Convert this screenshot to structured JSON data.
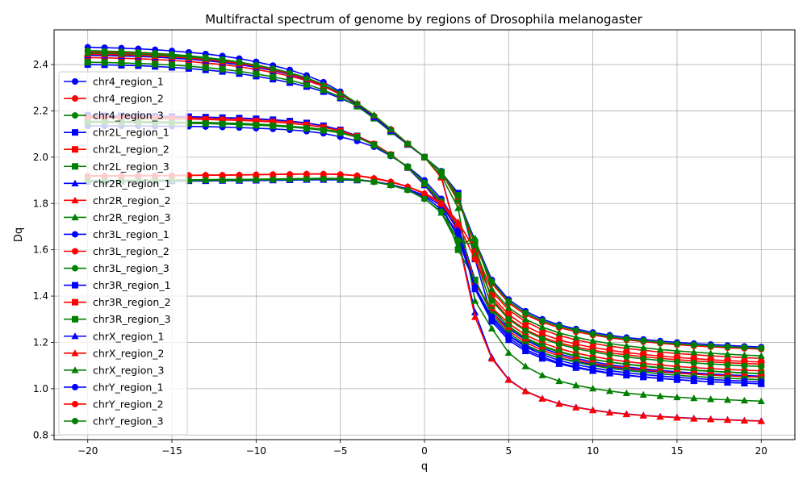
{
  "chart_data": {
    "type": "line",
    "title": "Multifractal spectrum of genome by regions of Drosophila melanogaster",
    "xlabel": "q",
    "ylabel": "Dq",
    "xlim": [
      -22,
      22
    ],
    "ylim": [
      0.78,
      2.55
    ],
    "xticks": [
      -20,
      -15,
      -10,
      -5,
      0,
      5,
      10,
      15,
      20
    ],
    "yticks": [
      0.8,
      1.0,
      1.2,
      1.4,
      1.6,
      1.8,
      2.0,
      2.2,
      2.4
    ],
    "xtick_labels": [
      "−20",
      "−15",
      "−10",
      "−5",
      "0",
      "5",
      "10",
      "15",
      "20"
    ],
    "ytick_labels": [
      "0.8",
      "1.0",
      "1.2",
      "1.4",
      "1.6",
      "1.8",
      "2.0",
      "2.2",
      "2.4"
    ],
    "grid": true,
    "legend_position": "left",
    "x": [
      -20,
      -19,
      -18,
      -17,
      -16,
      -15,
      -14,
      -13,
      -12,
      -11,
      -10,
      -9,
      -8,
      -7,
      -6,
      -5,
      -4,
      -3,
      -2,
      -1,
      0,
      1,
      2,
      3,
      4,
      5,
      6,
      7,
      8,
      9,
      10,
      11,
      12,
      13,
      14,
      15,
      16,
      17,
      18,
      19,
      20
    ],
    "series": [
      {
        "name": "chr4_region_1",
        "color": "#0000ff",
        "marker": "circle",
        "values": [
          2.475,
          2.473,
          2.471,
          2.468,
          2.464,
          2.459,
          2.453,
          2.446,
          2.437,
          2.426,
          2.412,
          2.396,
          2.377,
          2.353,
          2.324,
          2.283,
          2.228,
          2.17,
          2.112,
          2.055,
          2.0,
          1.94,
          1.82,
          1.64,
          1.47,
          1.385,
          1.335,
          1.3,
          1.276,
          1.258,
          1.243,
          1.231,
          1.221,
          1.213,
          1.206,
          1.2,
          1.195,
          1.191,
          1.187,
          1.183,
          1.18
        ]
      },
      {
        "name": "chr4_region_2",
        "color": "#ff0000",
        "marker": "circle",
        "values": [
          2.455,
          2.453,
          2.451,
          2.448,
          2.444,
          2.439,
          2.433,
          2.426,
          2.417,
          2.406,
          2.392,
          2.377,
          2.358,
          2.336,
          2.309,
          2.273,
          2.228,
          2.178,
          2.12,
          2.058,
          2.0,
          1.935,
          1.81,
          1.625,
          1.455,
          1.37,
          1.32,
          1.287,
          1.264,
          1.246,
          1.232,
          1.22,
          1.211,
          1.203,
          1.196,
          1.19,
          1.185,
          1.181,
          1.177,
          1.174,
          1.171
        ]
      },
      {
        "name": "chr4_region_3",
        "color": "#008000",
        "marker": "circle",
        "values": [
          2.46,
          2.458,
          2.456,
          2.453,
          2.449,
          2.444,
          2.438,
          2.431,
          2.422,
          2.411,
          2.397,
          2.381,
          2.362,
          2.338,
          2.31,
          2.272,
          2.224,
          2.172,
          2.115,
          2.056,
          2.0,
          1.937,
          1.815,
          1.632,
          1.462,
          1.377,
          1.327,
          1.293,
          1.27,
          1.252,
          1.237,
          1.225,
          1.215,
          1.207,
          1.2,
          1.194,
          1.189,
          1.185,
          1.181,
          1.178,
          1.175
        ]
      },
      {
        "name": "chr2L_region_1",
        "color": "#0000ff",
        "marker": "square",
        "values": [
          2.4,
          2.399,
          2.397,
          2.395,
          2.392,
          2.388,
          2.383,
          2.377,
          2.37,
          2.361,
          2.35,
          2.337,
          2.322,
          2.305,
          2.283,
          2.255,
          2.222,
          2.17,
          2.11,
          2.055,
          2.0,
          1.935,
          1.845,
          1.56,
          1.31,
          1.23,
          1.185,
          1.155,
          1.133,
          1.117,
          1.104,
          1.094,
          1.085,
          1.078,
          1.072,
          1.067,
          1.063,
          1.059,
          1.056,
          1.053,
          1.05
        ]
      },
      {
        "name": "chr2L_region_2",
        "color": "#ff0000",
        "marker": "square",
        "values": [
          2.43,
          2.429,
          2.427,
          2.425,
          2.422,
          2.418,
          2.413,
          2.407,
          2.4,
          2.391,
          2.379,
          2.366,
          2.35,
          2.331,
          2.306,
          2.271,
          2.228,
          2.172,
          2.115,
          2.056,
          2.0,
          1.935,
          1.83,
          1.59,
          1.39,
          1.305,
          1.255,
          1.222,
          1.198,
          1.18,
          1.166,
          1.155,
          1.146,
          1.138,
          1.131,
          1.125,
          1.12,
          1.116,
          1.112,
          1.109,
          1.106
        ]
      },
      {
        "name": "chr2L_region_3",
        "color": "#008000",
        "marker": "square",
        "values": [
          2.41,
          2.409,
          2.407,
          2.405,
          2.402,
          2.398,
          2.393,
          2.387,
          2.38,
          2.371,
          2.36,
          2.347,
          2.332,
          2.314,
          2.291,
          2.26,
          2.22,
          2.168,
          2.11,
          2.055,
          2.0,
          1.936,
          1.835,
          1.575,
          1.35,
          1.265,
          1.215,
          1.182,
          1.158,
          1.14,
          1.126,
          1.115,
          1.106,
          1.098,
          1.091,
          1.085,
          1.08,
          1.076,
          1.072,
          1.068,
          1.065
        ]
      },
      {
        "name": "chr2R_region_1",
        "color": "#0000ff",
        "marker": "triangle",
        "values": [
          2.44,
          2.439,
          2.437,
          2.435,
          2.432,
          2.428,
          2.423,
          2.417,
          2.409,
          2.4,
          2.388,
          2.374,
          2.357,
          2.336,
          2.31,
          2.274,
          2.228,
          2.172,
          2.114,
          2.056,
          2.0,
          1.915,
          1.65,
          1.33,
          1.135,
          1.04,
          0.99,
          0.958,
          0.936,
          0.92,
          0.908,
          0.898,
          0.891,
          0.885,
          0.88,
          0.876,
          0.872,
          0.869,
          0.866,
          0.863,
          0.861
        ]
      },
      {
        "name": "chr2R_region_2",
        "color": "#ff0000",
        "marker": "triangle",
        "values": [
          2.445,
          2.444,
          2.442,
          2.44,
          2.437,
          2.433,
          2.428,
          2.422,
          2.414,
          2.405,
          2.393,
          2.378,
          2.36,
          2.338,
          2.31,
          2.275,
          2.232,
          2.18,
          2.12,
          2.058,
          2.0,
          1.912,
          1.645,
          1.31,
          1.13,
          1.038,
          0.989,
          0.957,
          0.935,
          0.919,
          0.907,
          0.897,
          0.89,
          0.884,
          0.879,
          0.875,
          0.871,
          0.868,
          0.865,
          0.862,
          0.86
        ]
      },
      {
        "name": "chr2R_region_3",
        "color": "#008000",
        "marker": "triangle",
        "values": [
          2.45,
          2.449,
          2.447,
          2.445,
          2.442,
          2.438,
          2.433,
          2.427,
          2.419,
          2.41,
          2.398,
          2.383,
          2.365,
          2.343,
          2.314,
          2.278,
          2.234,
          2.182,
          2.122,
          2.06,
          2.0,
          1.92,
          1.78,
          1.38,
          1.26,
          1.155,
          1.097,
          1.058,
          1.033,
          1.015,
          1.001,
          0.99,
          0.981,
          0.974,
          0.968,
          0.963,
          0.959,
          0.955,
          0.952,
          0.949,
          0.946
        ]
      },
      {
        "name": "chr3L_region_1",
        "color": "#0000ff",
        "marker": "circle",
        "values": [
          2.135,
          2.135,
          2.135,
          2.135,
          2.134,
          2.134,
          2.133,
          2.132,
          2.13,
          2.128,
          2.125,
          2.122,
          2.118,
          2.112,
          2.103,
          2.088,
          2.07,
          2.045,
          2.005,
          1.96,
          1.9,
          1.82,
          1.705,
          1.47,
          1.33,
          1.26,
          1.21,
          1.175,
          1.15,
          1.131,
          1.116,
          1.104,
          1.094,
          1.086,
          1.079,
          1.073,
          1.068,
          1.064,
          1.06,
          1.057,
          1.054
        ]
      },
      {
        "name": "chr3L_region_2",
        "color": "#ff0000",
        "marker": "circle",
        "values": [
          2.175,
          2.174,
          2.174,
          2.173,
          2.172,
          2.171,
          2.17,
          2.169,
          2.167,
          2.165,
          2.162,
          2.158,
          2.153,
          2.146,
          2.135,
          2.118,
          2.092,
          2.058,
          2.012,
          1.955,
          1.88,
          1.8,
          1.7,
          1.45,
          1.35,
          1.282,
          1.232,
          1.198,
          1.173,
          1.154,
          1.139,
          1.127,
          1.117,
          1.109,
          1.102,
          1.096,
          1.091,
          1.087,
          1.083,
          1.08,
          1.077
        ]
      },
      {
        "name": "chr3L_region_3",
        "color": "#008000",
        "marker": "circle",
        "values": [
          2.155,
          2.155,
          2.154,
          2.154,
          2.153,
          2.152,
          2.151,
          2.15,
          2.148,
          2.146,
          2.143,
          2.139,
          2.134,
          2.128,
          2.12,
          2.11,
          2.09,
          2.052,
          2.008,
          1.958,
          1.89,
          1.81,
          1.7,
          1.46,
          1.34,
          1.27,
          1.22,
          1.186,
          1.161,
          1.142,
          1.127,
          1.115,
          1.105,
          1.097,
          1.09,
          1.084,
          1.079,
          1.075,
          1.071,
          1.068,
          1.065
        ]
      },
      {
        "name": "chr3R_region_1",
        "color": "#0000ff",
        "marker": "square",
        "values": [
          2.18,
          2.179,
          2.179,
          2.178,
          2.177,
          2.176,
          2.175,
          2.173,
          2.171,
          2.169,
          2.166,
          2.162,
          2.156,
          2.148,
          2.136,
          2.118,
          2.092,
          2.055,
          2.01,
          1.955,
          1.88,
          1.79,
          1.65,
          1.44,
          1.3,
          1.22,
          1.17,
          1.137,
          1.112,
          1.094,
          1.08,
          1.068,
          1.059,
          1.051,
          1.045,
          1.039,
          1.034,
          1.03,
          1.027,
          1.024,
          1.021
        ]
      },
      {
        "name": "chr3R_region_2",
        "color": "#ff0000",
        "marker": "square",
        "values": [
          2.17,
          2.169,
          2.169,
          2.168,
          2.167,
          2.166,
          2.165,
          2.163,
          2.161,
          2.159,
          2.156,
          2.152,
          2.146,
          2.139,
          2.129,
          2.114,
          2.09,
          2.055,
          2.01,
          1.956,
          1.885,
          1.8,
          1.68,
          1.46,
          1.33,
          1.25,
          1.2,
          1.166,
          1.142,
          1.124,
          1.109,
          1.098,
          1.088,
          1.081,
          1.074,
          1.068,
          1.063,
          1.059,
          1.056,
          1.052,
          1.05
        ]
      },
      {
        "name": "chr3R_region_3",
        "color": "#008000",
        "marker": "square",
        "values": [
          2.15,
          2.15,
          2.149,
          2.149,
          2.148,
          2.147,
          2.146,
          2.145,
          2.143,
          2.141,
          2.138,
          2.135,
          2.13,
          2.124,
          2.116,
          2.105,
          2.086,
          2.053,
          2.008,
          1.957,
          1.886,
          1.805,
          1.6,
          1.47,
          1.32,
          1.24,
          1.19,
          1.156,
          1.132,
          1.114,
          1.1,
          1.088,
          1.079,
          1.071,
          1.064,
          1.058,
          1.053,
          1.049,
          1.045,
          1.042,
          1.039
        ]
      },
      {
        "name": "chrX_region_1",
        "color": "#0000ff",
        "marker": "triangle",
        "values": [
          1.895,
          1.895,
          1.895,
          1.896,
          1.896,
          1.896,
          1.897,
          1.897,
          1.898,
          1.898,
          1.899,
          1.9,
          1.901,
          1.902,
          1.902,
          1.902,
          1.9,
          1.895,
          1.882,
          1.862,
          1.835,
          1.79,
          1.69,
          1.43,
          1.29,
          1.21,
          1.162,
          1.13,
          1.107,
          1.09,
          1.077,
          1.066,
          1.057,
          1.05,
          1.044,
          1.039,
          1.034,
          1.03,
          1.027,
          1.024,
          1.021
        ]
      },
      {
        "name": "chrX_region_2",
        "color": "#ff0000",
        "marker": "triangle",
        "values": [
          1.92,
          1.92,
          1.92,
          1.921,
          1.921,
          1.922,
          1.922,
          1.923,
          1.923,
          1.924,
          1.925,
          1.926,
          1.927,
          1.928,
          1.928,
          1.926,
          1.921,
          1.91,
          1.895,
          1.873,
          1.845,
          1.805,
          1.72,
          1.6,
          1.42,
          1.34,
          1.29,
          1.255,
          1.23,
          1.211,
          1.196,
          1.184,
          1.174,
          1.166,
          1.158,
          1.152,
          1.147,
          1.142,
          1.138,
          1.134,
          1.131
        ]
      },
      {
        "name": "chrX_region_3",
        "color": "#008000",
        "marker": "triangle",
        "values": [
          1.9,
          1.9,
          1.9,
          1.901,
          1.901,
          1.902,
          1.902,
          1.903,
          1.904,
          1.904,
          1.905,
          1.906,
          1.907,
          1.908,
          1.909,
          1.908,
          1.904,
          1.895,
          1.88,
          1.86,
          1.822,
          1.76,
          1.62,
          1.65,
          1.43,
          1.35,
          1.3,
          1.266,
          1.241,
          1.222,
          1.207,
          1.195,
          1.185,
          1.177,
          1.169,
          1.163,
          1.158,
          1.153,
          1.149,
          1.145,
          1.142
        ]
      },
      {
        "name": "chrY_region_1",
        "color": "#0000ff",
        "marker": "circle",
        "values": [
          1.895,
          1.896,
          1.896,
          1.896,
          1.897,
          1.897,
          1.898,
          1.898,
          1.899,
          1.9,
          1.901,
          1.902,
          1.903,
          1.904,
          1.904,
          1.903,
          1.901,
          1.895,
          1.882,
          1.862,
          1.83,
          1.775,
          1.67,
          1.44,
          1.31,
          1.23,
          1.18,
          1.147,
          1.122,
          1.104,
          1.09,
          1.078,
          1.069,
          1.061,
          1.055,
          1.049,
          1.044,
          1.04,
          1.036,
          1.033,
          1.03
        ]
      },
      {
        "name": "chrY_region_2",
        "color": "#ff0000",
        "marker": "circle",
        "values": [
          1.918,
          1.918,
          1.919,
          1.919,
          1.92,
          1.92,
          1.921,
          1.922,
          1.922,
          1.923,
          1.924,
          1.925,
          1.926,
          1.927,
          1.927,
          1.925,
          1.92,
          1.908,
          1.893,
          1.872,
          1.842,
          1.798,
          1.71,
          1.56,
          1.4,
          1.32,
          1.27,
          1.236,
          1.211,
          1.192,
          1.178,
          1.166,
          1.156,
          1.148,
          1.141,
          1.135,
          1.13,
          1.125,
          1.121,
          1.118,
          1.115
        ]
      },
      {
        "name": "chrY_region_3",
        "color": "#008000",
        "marker": "circle",
        "values": [
          1.897,
          1.897,
          1.897,
          1.898,
          1.898,
          1.899,
          1.899,
          1.9,
          1.9,
          1.901,
          1.902,
          1.903,
          1.904,
          1.905,
          1.906,
          1.905,
          1.901,
          1.893,
          1.879,
          1.858,
          1.82,
          1.765,
          1.64,
          1.62,
          1.38,
          1.3,
          1.25,
          1.216,
          1.192,
          1.173,
          1.159,
          1.147,
          1.137,
          1.129,
          1.122,
          1.116,
          1.111,
          1.107,
          1.103,
          1.099,
          1.096
        ]
      }
    ]
  }
}
